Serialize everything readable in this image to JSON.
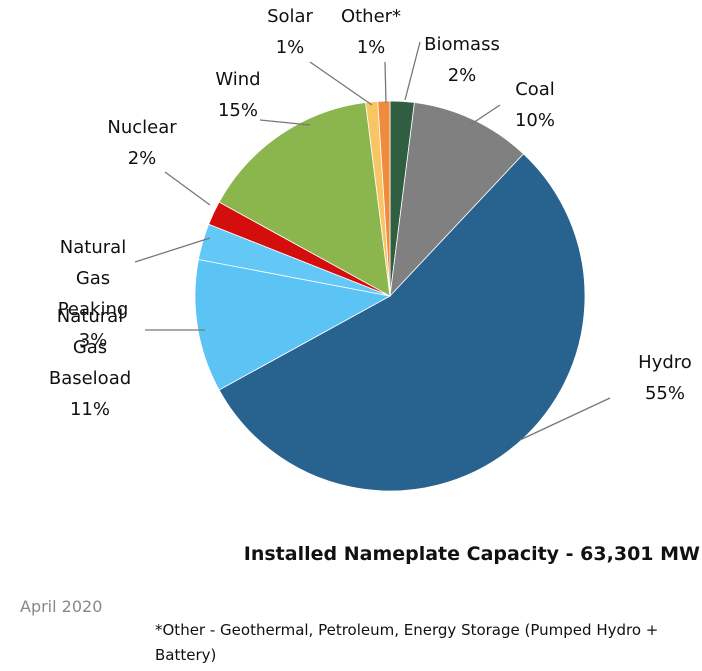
{
  "chart_data": {
    "type": "pie",
    "title": "Installed Nameplate Capacity - 63,301 MW",
    "date": "April 2020",
    "note": "*Other - Geothermal, Petroleum, Energy Storage (Pumped Hydro + Battery)",
    "categories": [
      "Biomass",
      "Coal",
      "Hydro",
      "Natural Gas Baseload",
      "Natural Gas Peaking",
      "Nuclear",
      "Wind",
      "Solar",
      "Other*"
    ],
    "values": [
      2,
      10,
      55,
      11,
      3,
      2,
      15,
      1,
      1
    ],
    "value_labels": [
      "2%",
      "10%",
      "55%",
      "11%",
      "3%",
      "2%",
      "15%",
      "1%",
      "1%"
    ],
    "colors": [
      "#2f5f40",
      "#808080",
      "#28628f",
      "#5cc3f5",
      "#63c8f6",
      "#d40d0d",
      "#8bb54d",
      "#f7c663",
      "#ef8a3e"
    ]
  }
}
